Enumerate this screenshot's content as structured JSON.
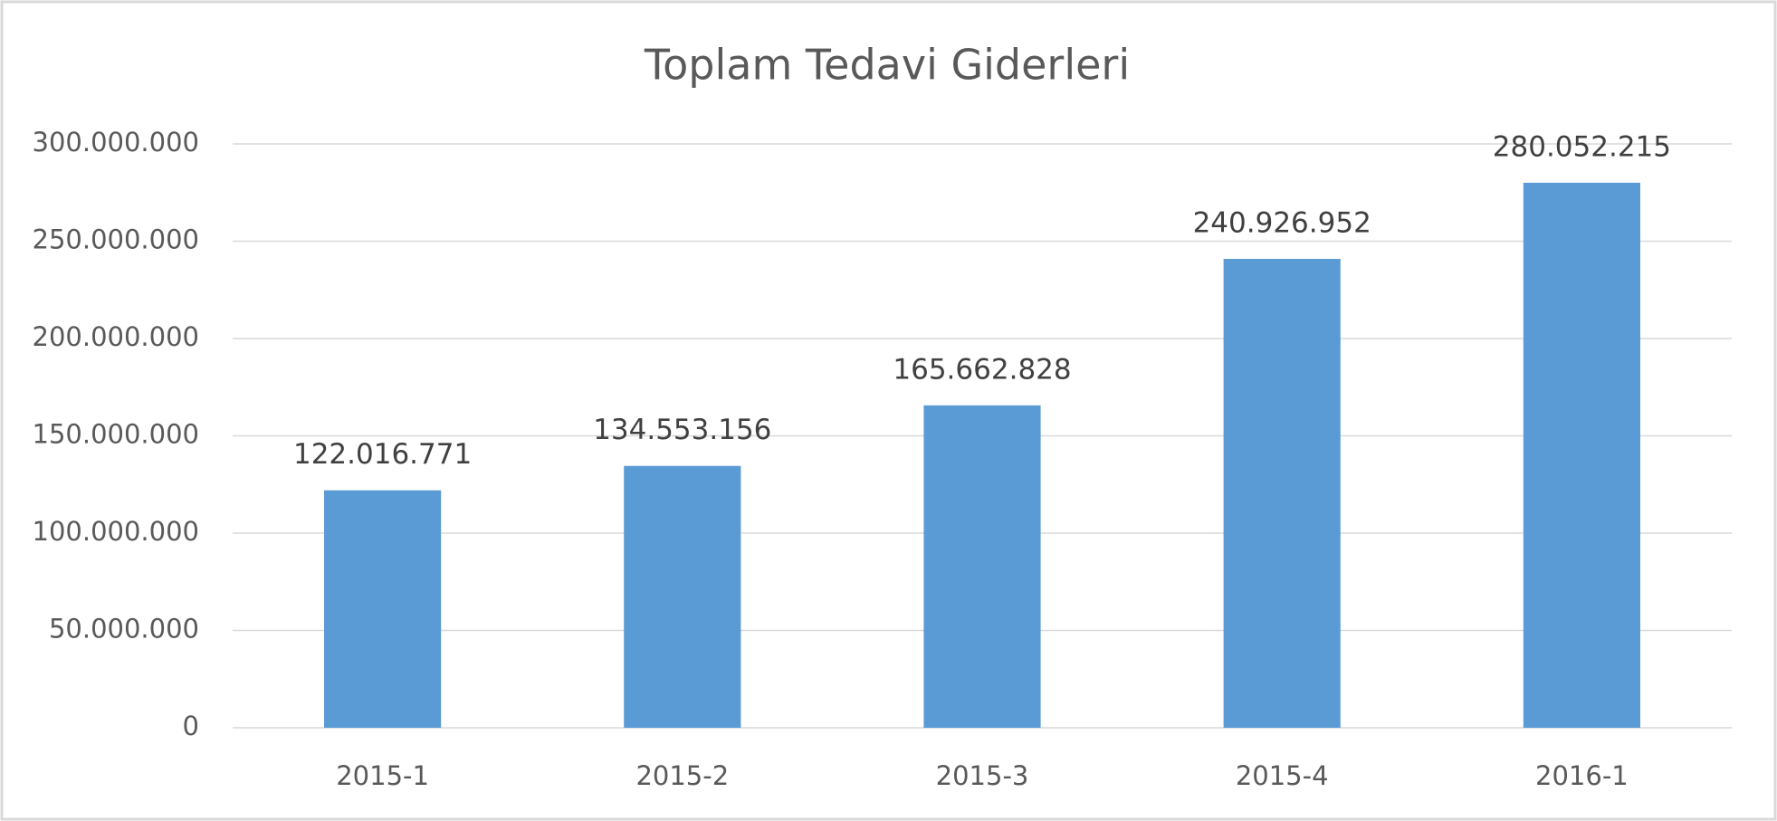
{
  "chart_data": {
    "type": "bar",
    "title": "Toplam Tedavi Giderleri",
    "categories": [
      "2015-1",
      "2015-2",
      "2015-3",
      "2015-4",
      "2016-1"
    ],
    "values": [
      122016771,
      134553156,
      165662828,
      240926952,
      280052215
    ],
    "value_labels": [
      "122.016.771",
      "134.553.156",
      "165.662.828",
      "240.926.952",
      "280.052.215"
    ],
    "color": "#5b9bd5",
    "ylim": [
      0,
      300000000
    ],
    "yticks": [
      0,
      {
        "value": 50000000,
        "label": "50.000.000"
      },
      {
        "value": 100000000,
        "label": "100.000.000"
      },
      {
        "value": 150000000,
        "label": "150.000.000"
      },
      {
        "value": 200000000,
        "label": "200.000.000"
      },
      {
        "value": 250000000,
        "label": "250.000.000"
      },
      {
        "value": 300000000,
        "label": "300.000.000"
      }
    ],
    "grid": true
  }
}
